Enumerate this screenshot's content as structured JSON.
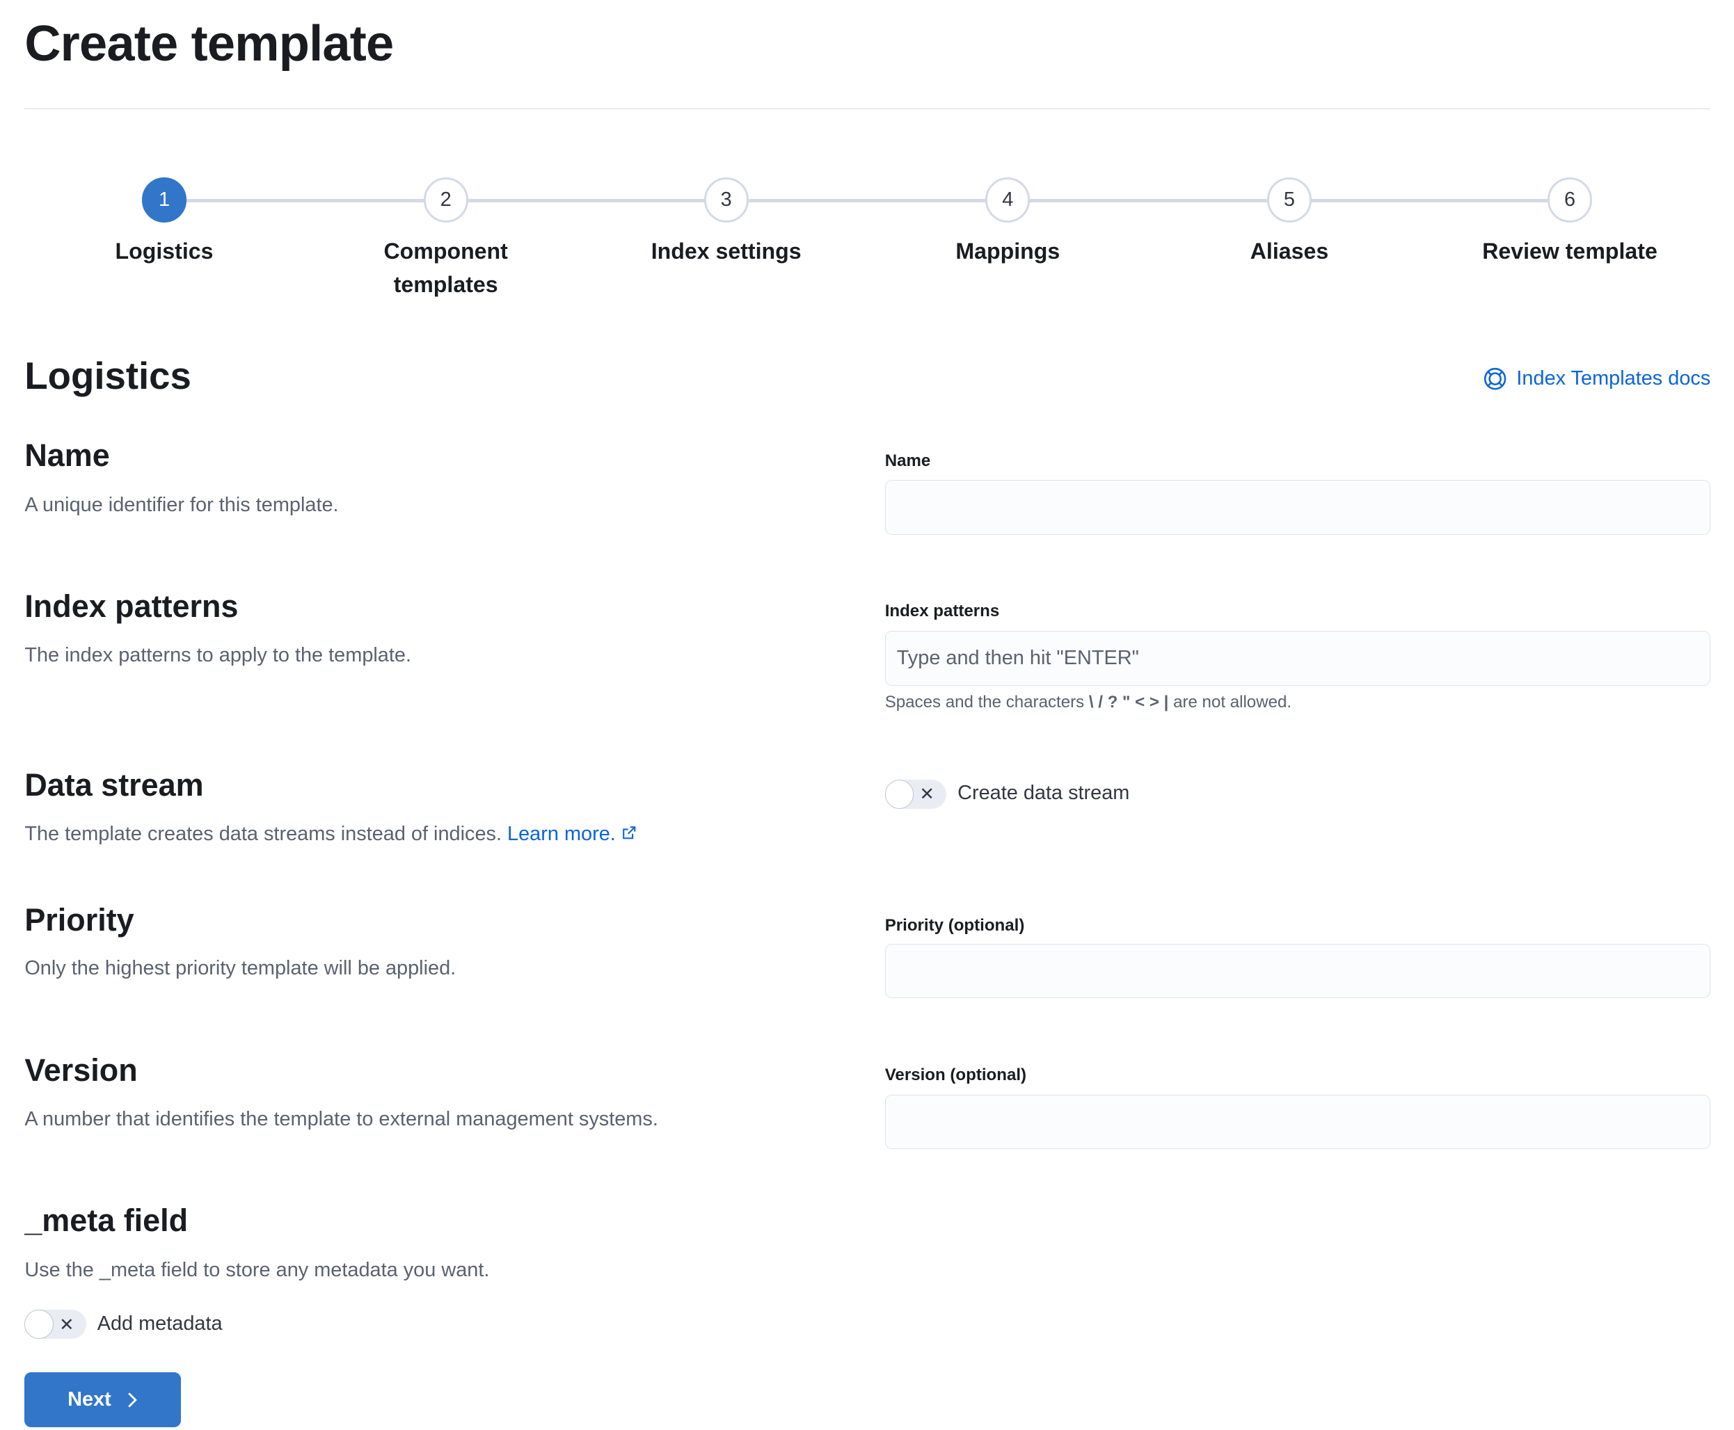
{
  "page_title": "Create template",
  "steps": [
    {
      "number": "1",
      "label": "Logistics",
      "active": true
    },
    {
      "number": "2",
      "label": "Component templates"
    },
    {
      "number": "3",
      "label": "Index settings"
    },
    {
      "number": "4",
      "label": "Mappings"
    },
    {
      "number": "5",
      "label": "Aliases"
    },
    {
      "number": "6",
      "label": "Review template"
    }
  ],
  "section_title": "Logistics",
  "docs_link": "Index Templates docs",
  "name": {
    "title": "Name",
    "desc": "A unique identifier for this template.",
    "label": "Name",
    "value": ""
  },
  "index_patterns": {
    "title": "Index patterns",
    "desc": "The index patterns to apply to the template.",
    "label": "Index patterns",
    "placeholder": "Type and then hit \"ENTER\"",
    "help_pre": "Spaces and the characters",
    "help_chars": "\\ / ? \" < > |",
    "help_post": "are not allowed."
  },
  "data_stream": {
    "title": "Data stream",
    "desc": "The template creates data streams instead of indices.",
    "link": "Learn more.",
    "toggle_label": "Create data stream",
    "enabled": false
  },
  "priority": {
    "title": "Priority",
    "desc": "Only the highest priority template will be applied.",
    "label": "Priority (optional)",
    "value": ""
  },
  "version": {
    "title": "Version",
    "desc": "A number that identifies the template to external management systems.",
    "label": "Version (optional)",
    "value": ""
  },
  "meta": {
    "title": "_meta field",
    "desc": "Use the _meta field to store any metadata you want.",
    "toggle_label": "Add metadata",
    "enabled": false
  },
  "next_label": "Next",
  "colors": {
    "primary": "#3176c9",
    "link": "#0b64dd"
  }
}
